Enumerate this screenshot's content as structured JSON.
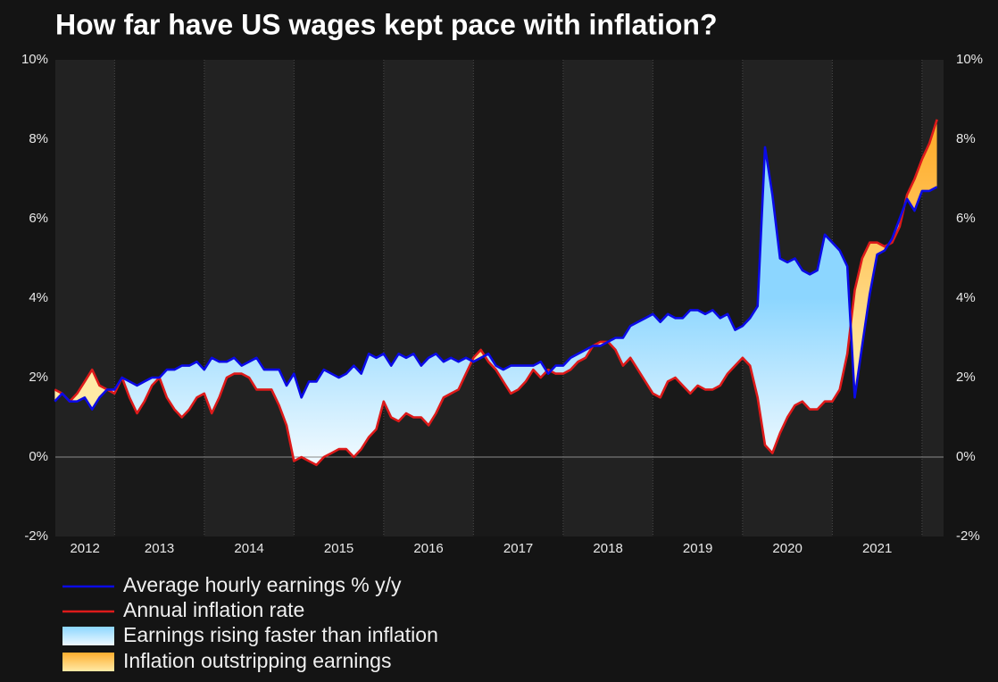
{
  "chart_data": {
    "type": "gap_area",
    "title": "How far have US wages kept pace with inflation?",
    "x": [
      2012.333,
      2012.417,
      2012.5,
      2012.583,
      2012.667,
      2012.75,
      2012.833,
      2012.917,
      2013,
      2013.083,
      2013.167,
      2013.25,
      2013.333,
      2013.417,
      2013.5,
      2013.583,
      2013.667,
      2013.75,
      2013.833,
      2013.917,
      2014,
      2014.083,
      2014.167,
      2014.25,
      2014.333,
      2014.417,
      2014.5,
      2014.583,
      2014.667,
      2014.75,
      2014.833,
      2014.917,
      2015,
      2015.083,
      2015.167,
      2015.25,
      2015.333,
      2015.417,
      2015.5,
      2015.583,
      2015.667,
      2015.75,
      2015.833,
      2015.917,
      2016,
      2016.083,
      2016.167,
      2016.25,
      2016.333,
      2016.417,
      2016.5,
      2016.583,
      2016.667,
      2016.75,
      2016.833,
      2016.917,
      2017,
      2017.083,
      2017.167,
      2017.25,
      2017.333,
      2017.417,
      2017.5,
      2017.583,
      2017.667,
      2017.75,
      2017.833,
      2017.917,
      2018,
      2018.083,
      2018.167,
      2018.25,
      2018.333,
      2018.417,
      2018.5,
      2018.583,
      2018.667,
      2018.75,
      2018.833,
      2018.917,
      2019,
      2019.083,
      2019.167,
      2019.25,
      2019.333,
      2019.417,
      2019.5,
      2019.583,
      2019.667,
      2019.75,
      2019.833,
      2019.917,
      2020,
      2020.083,
      2020.167,
      2020.25,
      2020.333,
      2020.417,
      2020.5,
      2020.583,
      2020.667,
      2020.75,
      2020.833,
      2020.917,
      2021,
      2021.083,
      2021.167,
      2021.25,
      2021.333,
      2021.417,
      2021.5,
      2021.583,
      2021.667,
      2021.75,
      2021.833,
      2021.917,
      2022,
      2022.083,
      2022.167
    ],
    "series": [
      {
        "name": "Average hourly earnings % y/y",
        "color": "#0a0ae6",
        "values": [
          1.4,
          1.6,
          1.4,
          1.4,
          1.5,
          1.2,
          1.5,
          1.7,
          1.7,
          2.0,
          1.9,
          1.8,
          1.9,
          2.0,
          2.0,
          2.2,
          2.2,
          2.3,
          2.3,
          2.4,
          2.2,
          2.5,
          2.4,
          2.4,
          2.5,
          2.3,
          2.4,
          2.5,
          2.2,
          2.2,
          2.2,
          1.8,
          2.1,
          1.5,
          1.9,
          1.9,
          2.2,
          2.1,
          2.0,
          2.1,
          2.3,
          2.1,
          2.6,
          2.5,
          2.6,
          2.3,
          2.6,
          2.5,
          2.6,
          2.3,
          2.5,
          2.6,
          2.4,
          2.5,
          2.4,
          2.5,
          2.4,
          2.5,
          2.6,
          2.3,
          2.2,
          2.3,
          2.3,
          2.3,
          2.3,
          2.4,
          2.1,
          2.3,
          2.3,
          2.5,
          2.6,
          2.7,
          2.8,
          2.8,
          2.9,
          3.0,
          3.0,
          3.3,
          3.4,
          3.5,
          3.6,
          3.4,
          3.6,
          3.5,
          3.5,
          3.7,
          3.7,
          3.6,
          3.7,
          3.5,
          3.6,
          3.2,
          3.3,
          3.5,
          3.8,
          7.8,
          6.6,
          5.0,
          4.9,
          5.0,
          4.7,
          4.6,
          4.7,
          5.6,
          5.4,
          5.2,
          4.8,
          1.5,
          2.8,
          4.1,
          5.1,
          5.2,
          5.5,
          6.0,
          6.5,
          6.2,
          6.7,
          6.7,
          6.8
        ]
      },
      {
        "name": "Annual inflation rate",
        "color": "#dd1a1a",
        "values": [
          1.7,
          1.6,
          1.4,
          1.6,
          1.9,
          2.2,
          1.8,
          1.7,
          1.6,
          2.0,
          1.5,
          1.1,
          1.4,
          1.8,
          2.0,
          1.5,
          1.2,
          1.0,
          1.2,
          1.5,
          1.6,
          1.1,
          1.5,
          2.0,
          2.1,
          2.1,
          2.0,
          1.7,
          1.7,
          1.7,
          1.3,
          0.8,
          -0.1,
          0.0,
          -0.1,
          -0.2,
          0.0,
          0.1,
          0.2,
          0.2,
          0.0,
          0.2,
          0.5,
          0.7,
          1.4,
          1.0,
          0.9,
          1.1,
          1.0,
          1.0,
          0.8,
          1.1,
          1.5,
          1.6,
          1.7,
          2.1,
          2.5,
          2.7,
          2.4,
          2.2,
          1.9,
          1.6,
          1.7,
          1.9,
          2.2,
          2.0,
          2.2,
          2.1,
          2.1,
          2.2,
          2.4,
          2.5,
          2.8,
          2.9,
          2.9,
          2.7,
          2.3,
          2.5,
          2.2,
          1.9,
          1.6,
          1.5,
          1.9,
          2.0,
          1.8,
          1.6,
          1.8,
          1.7,
          1.7,
          1.8,
          2.1,
          2.3,
          2.5,
          2.3,
          1.5,
          0.3,
          0.1,
          0.6,
          1.0,
          1.3,
          1.4,
          1.2,
          1.2,
          1.4,
          1.4,
          1.7,
          2.6,
          4.2,
          5.0,
          5.4,
          5.4,
          5.3,
          5.4,
          5.8,
          6.6,
          7.0,
          7.5,
          7.9,
          8.5
        ]
      }
    ],
    "fills": [
      {
        "name": "Earnings rising faster than inflation",
        "colors": [
          "#8cd6ff",
          "#eef9ff"
        ]
      },
      {
        "name": "Inflation outstripping earnings",
        "colors": [
          "#ffae2e",
          "#ffeaa6"
        ]
      }
    ],
    "xlim": [
      2012.34,
      2022.24
    ],
    "xticks": [
      2012,
      2013,
      2014,
      2015,
      2016,
      2017,
      2018,
      2019,
      2020,
      2021
    ],
    "year_bands": true,
    "ylim": [
      -2,
      10
    ],
    "yticks": [
      {
        "value": -2,
        "label": "-2%"
      },
      {
        "value": 0,
        "label": "0%"
      },
      {
        "value": 2,
        "label": "2%"
      },
      {
        "value": 4,
        "label": "4%"
      },
      {
        "value": 6,
        "label": "6%"
      },
      {
        "value": 8,
        "label": "8%"
      },
      {
        "value": 10,
        "label": "10%"
      }
    ],
    "y2lim": [
      -2,
      10
    ],
    "y2ticks": [
      {
        "value": -2,
        "label": "-2%"
      },
      {
        "value": 0,
        "label": "0%"
      },
      {
        "value": 2,
        "label": "2%"
      },
      {
        "value": 4,
        "label": "4%"
      },
      {
        "value": 6,
        "label": "6%"
      },
      {
        "value": 8,
        "label": "8%"
      },
      {
        "value": 10,
        "label": "10%"
      }
    ],
    "zero_line": true
  }
}
